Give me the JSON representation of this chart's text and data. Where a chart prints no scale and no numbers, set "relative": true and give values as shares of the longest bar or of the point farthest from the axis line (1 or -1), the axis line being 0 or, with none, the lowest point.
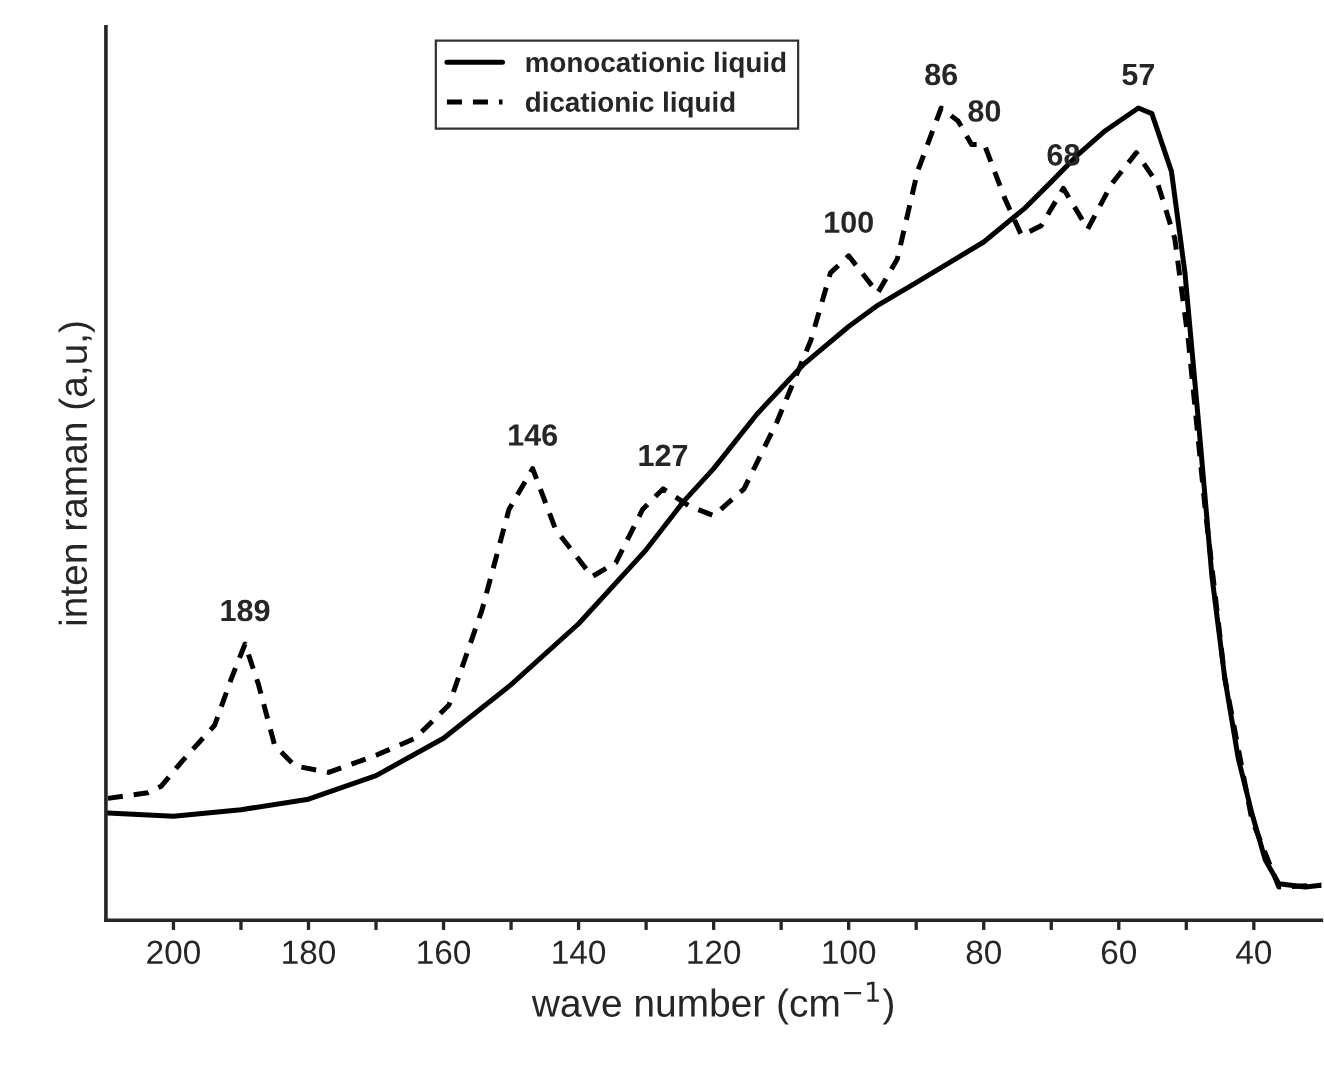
{
  "chart_data": {
    "type": "line",
    "relative": true,
    "xlabel": "wave number (cm$^{−1}$)",
    "ylabel": "inten raman (a,u,)",
    "xlim": [
      210,
      30
    ],
    "xticks": [
      200,
      {
        "value": 190,
        "label": null
      },
      180,
      {
        "value": 170,
        "label": null
      },
      160,
      {
        "value": 150,
        "label": null
      },
      140,
      {
        "value": 130,
        "label": null
      },
      120,
      {
        "value": 110,
        "label": null
      },
      100,
      {
        "value": 90,
        "label": null
      },
      80,
      {
        "value": 70,
        "label": null
      },
      60,
      {
        "value": 50,
        "label": null
      },
      40
    ],
    "tick_labels": "x",
    "grid": false,
    "legend": "top left",
    "marker": "none",
    "series": [
      {
        "name": "monocationic liquid",
        "color": "#000000",
        "line_style": "solid",
        "x": [
          209.7,
          200,
          190,
          180,
          170,
          160,
          150,
          140,
          130,
          124.5,
          120,
          113.6,
          106.6,
          100,
          95.7,
          90,
          80,
          74,
          70,
          66,
          62,
          57.1,
          55.1,
          52.2,
          50.2,
          48.2,
          46.2,
          44.3,
          42.3,
          40.3,
          38.3,
          36.3,
          32.4,
          30
        ],
        "values": [
          0.132,
          0.128,
          0.136,
          0.149,
          0.178,
          0.224,
          0.29,
          0.365,
          0.456,
          0.515,
          0.556,
          0.623,
          0.685,
          0.731,
          0.757,
          0.785,
          0.835,
          0.876,
          0.909,
          0.943,
          0.972,
          1.0,
          0.993,
          0.922,
          0.797,
          0.614,
          0.423,
          0.298,
          0.199,
          0.132,
          0.074,
          0.045,
          0.041,
          0.043
        ]
      },
      {
        "name": "dicationic liquid",
        "color": "#000000",
        "line_style": "dashed",
        "x": [
          209.7,
          203.8,
          201.8,
          198.8,
          193.9,
          191.4,
          189.4,
          187.4,
          185,
          182,
          177,
          170,
          164.2,
          159.2,
          154.3,
          150.3,
          146.8,
          143.4,
          138,
          134.5,
          130.5,
          127.5,
          123.6,
          120,
          115.5,
          110.6,
          105.6,
          102.7,
          100,
          95.7,
          92.8,
          89.8,
          86.3,
          83.8,
          81.8,
          79.9,
          76.9,
          74.4,
          71.5,
          68.2,
          64.6,
          61.1,
          57.4,
          54.2,
          51.7,
          49.7,
          47.2,
          44.3,
          40.3,
          36.3,
          30
        ],
        "values": [
          0.15,
          0.157,
          0.165,
          0.195,
          0.24,
          0.298,
          0.34,
          0.29,
          0.215,
          0.19,
          0.182,
          0.203,
          0.224,
          0.265,
          0.382,
          0.506,
          0.556,
          0.481,
          0.423,
          0.44,
          0.506,
          0.531,
          0.51,
          0.498,
          0.531,
          0.614,
          0.714,
          0.797,
          0.818,
          0.772,
          0.814,
          0.922,
          1.0,
          0.984,
          0.955,
          0.955,
          0.889,
          0.843,
          0.855,
          0.901,
          0.851,
          0.906,
          0.945,
          0.906,
          0.839,
          0.714,
          0.506,
          0.298,
          0.124,
          0.041,
          0.043
        ]
      }
    ],
    "annotations": [
      {
        "text": "189",
        "x": 189.4,
        "y": 0.34
      },
      {
        "text": "146",
        "x": 146.8,
        "y": 0.556
      },
      {
        "text": "127",
        "x": 127.5,
        "y": 0.531
      },
      {
        "text": "100",
        "x": 100,
        "y": 0.818
      },
      {
        "text": "86",
        "x": 86.3,
        "y": 1.0
      },
      {
        "text": "80",
        "x": 79.9,
        "y": 0.955
      },
      {
        "text": "68",
        "x": 68.2,
        "y": 0.901
      },
      {
        "text": "57",
        "x": 57.1,
        "y": 1.0
      }
    ]
  }
}
